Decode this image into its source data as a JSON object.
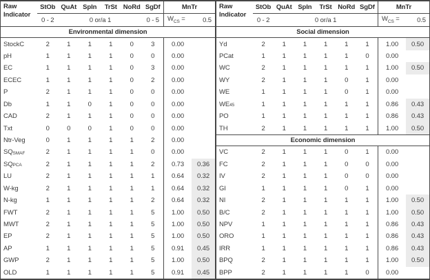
{
  "table": {
    "indicator_header": {
      "line1": "Raw",
      "line2": "Indicator"
    },
    "score_columns": [
      "StOb",
      "QuAt",
      "SpIn",
      "TrSt",
      "NoRd",
      "SgDf"
    ],
    "mntr_label": "MnTr",
    "wcs": {
      "base": "W",
      "sub": "CS",
      "eq": "=",
      "value": "0.5"
    },
    "colors": {
      "shade": "#ebebeb",
      "line": "#4a4a4a",
      "text": "#3c3c3c"
    },
    "panels": [
      {
        "ranges": [
          {
            "label": "0 - 2",
            "span": 1
          },
          {
            "label": "0 or/a 1",
            "span": 4
          },
          {
            "label": "0 - 5",
            "span": 1
          }
        ],
        "sections": [
          {
            "title": "Environmental dimension",
            "rows": [
              {
                "indicator": "StockC",
                "subscript": "",
                "scores": [
                  "2",
                  "1",
                  "1",
                  "1",
                  "0",
                  "3"
                ],
                "mntr": "0.00",
                "weight": ""
              },
              {
                "indicator": "pH",
                "subscript": "",
                "scores": [
                  "1",
                  "1",
                  "1",
                  "1",
                  "0",
                  "0"
                ],
                "mntr": "0.00",
                "weight": ""
              },
              {
                "indicator": "EC",
                "subscript": "",
                "scores": [
                  "1",
                  "1",
                  "1",
                  "1",
                  "0",
                  "3"
                ],
                "mntr": "0.00",
                "weight": ""
              },
              {
                "indicator": "ECEC",
                "subscript": "",
                "scores": [
                  "1",
                  "1",
                  "1",
                  "1",
                  "0",
                  "2"
                ],
                "mntr": "0.00",
                "weight": ""
              },
              {
                "indicator": "P",
                "subscript": "",
                "scores": [
                  "2",
                  "1",
                  "1",
                  "1",
                  "0",
                  "0"
                ],
                "mntr": "0.00",
                "weight": ""
              },
              {
                "indicator": "Db",
                "subscript": "",
                "scores": [
                  "1",
                  "1",
                  "0",
                  "1",
                  "0",
                  "0"
                ],
                "mntr": "0.00",
                "weight": ""
              },
              {
                "indicator": "CAD",
                "subscript": "",
                "scores": [
                  "2",
                  "1",
                  "1",
                  "1",
                  "0",
                  "0"
                ],
                "mntr": "0.00",
                "weight": ""
              },
              {
                "indicator": "Txt",
                "subscript": "",
                "scores": [
                  "0",
                  "0",
                  "0",
                  "1",
                  "0",
                  "0"
                ],
                "mntr": "0.00",
                "weight": ""
              },
              {
                "indicator": "Ntr-Veg",
                "subscript": "",
                "scores": [
                  "0",
                  "1",
                  "1",
                  "1",
                  "1",
                  "2"
                ],
                "mntr": "0.00",
                "weight": ""
              },
              {
                "indicator": "SQ",
                "subscript": "SMAF",
                "scores": [
                  "2",
                  "1",
                  "1",
                  "1",
                  "1",
                  "0"
                ],
                "mntr": "0.00",
                "weight": ""
              },
              {
                "indicator": "SQ",
                "subscript": "PCA",
                "scores": [
                  "2",
                  "1",
                  "1",
                  "1",
                  "1",
                  "2"
                ],
                "mntr": "0.73",
                "weight": "0.36"
              },
              {
                "indicator": "LU",
                "subscript": "",
                "scores": [
                  "2",
                  "1",
                  "1",
                  "1",
                  "1",
                  "1"
                ],
                "mntr": "0.64",
                "weight": "0.32"
              },
              {
                "indicator": "W-kg",
                "subscript": "",
                "scores": [
                  "2",
                  "1",
                  "1",
                  "1",
                  "1",
                  "1"
                ],
                "mntr": "0.64",
                "weight": "0.32"
              },
              {
                "indicator": "N-kg",
                "subscript": "",
                "scores": [
                  "1",
                  "1",
                  "1",
                  "1",
                  "1",
                  "2"
                ],
                "mntr": "0.64",
                "weight": "0.32"
              },
              {
                "indicator": "FWT",
                "subscript": "",
                "scores": [
                  "2",
                  "1",
                  "1",
                  "1",
                  "1",
                  "5"
                ],
                "mntr": "1.00",
                "weight": "0.50"
              },
              {
                "indicator": "MWT",
                "subscript": "",
                "scores": [
                  "2",
                  "1",
                  "1",
                  "1",
                  "1",
                  "5"
                ],
                "mntr": "1.00",
                "weight": "0.50"
              },
              {
                "indicator": "EP",
                "subscript": "",
                "scores": [
                  "2",
                  "1",
                  "1",
                  "1",
                  "1",
                  "5"
                ],
                "mntr": "1.00",
                "weight": "0.50"
              },
              {
                "indicator": "AP",
                "subscript": "",
                "scores": [
                  "1",
                  "1",
                  "1",
                  "1",
                  "1",
                  "5"
                ],
                "mntr": "0.91",
                "weight": "0.45"
              },
              {
                "indicator": "GWP",
                "subscript": "",
                "scores": [
                  "2",
                  "1",
                  "1",
                  "1",
                  "1",
                  "5"
                ],
                "mntr": "1.00",
                "weight": "0.50"
              },
              {
                "indicator": "OLD",
                "subscript": "",
                "scores": [
                  "1",
                  "1",
                  "1",
                  "1",
                  "1",
                  "5"
                ],
                "mntr": "0.91",
                "weight": "0.45"
              }
            ]
          }
        ]
      },
      {
        "ranges": [
          {
            "label": "0 - 2",
            "span": 1
          },
          {
            "label": "0 or/a 1",
            "span": 5
          }
        ],
        "sections": [
          {
            "title": "Social dimension",
            "rows": [
              {
                "indicator": "Yd",
                "subscript": "",
                "scores": [
                  "2",
                  "1",
                  "1",
                  "1",
                  "1",
                  "1"
                ],
                "mntr": "1.00",
                "weight": "0.50"
              },
              {
                "indicator": "PCat",
                "subscript": "",
                "scores": [
                  "1",
                  "1",
                  "1",
                  "1",
                  "1",
                  "0"
                ],
                "mntr": "0.00",
                "weight": ""
              },
              {
                "indicator": "WC",
                "subscript": "",
                "scores": [
                  "2",
                  "1",
                  "1",
                  "1",
                  "1",
                  "1"
                ],
                "mntr": "1.00",
                "weight": "0.50"
              },
              {
                "indicator": "WY",
                "subscript": "",
                "scores": [
                  "2",
                  "1",
                  "1",
                  "1",
                  "0",
                  "1"
                ],
                "mntr": "0.00",
                "weight": ""
              },
              {
                "indicator": "WE",
                "subscript": "",
                "scores": [
                  "1",
                  "1",
                  "1",
                  "1",
                  "0",
                  "1"
                ],
                "mntr": "0.00",
                "weight": ""
              },
              {
                "indicator": "WE",
                "subscript": "45",
                "scores": [
                  "1",
                  "1",
                  "1",
                  "1",
                  "1",
                  "1"
                ],
                "mntr": "0.86",
                "weight": "0.43"
              },
              {
                "indicator": "PO",
                "subscript": "",
                "scores": [
                  "1",
                  "1",
                  "1",
                  "1",
                  "1",
                  "1"
                ],
                "mntr": "0.86",
                "weight": "0.43"
              },
              {
                "indicator": "TH",
                "subscript": "",
                "scores": [
                  "2",
                  "1",
                  "1",
                  "1",
                  "1",
                  "1"
                ],
                "mntr": "1.00",
                "weight": "0.50"
              }
            ]
          },
          {
            "title": "Economic dimension",
            "rows": [
              {
                "indicator": "VC",
                "subscript": "",
                "scores": [
                  "2",
                  "1",
                  "1",
                  "1",
                  "0",
                  "1"
                ],
                "mntr": "0.00",
                "weight": ""
              },
              {
                "indicator": "FC",
                "subscript": "",
                "scores": [
                  "2",
                  "1",
                  "1",
                  "1",
                  "0",
                  "0"
                ],
                "mntr": "0.00",
                "weight": ""
              },
              {
                "indicator": "IV",
                "subscript": "",
                "scores": [
                  "2",
                  "1",
                  "1",
                  "1",
                  "0",
                  "0"
                ],
                "mntr": "0.00",
                "weight": ""
              },
              {
                "indicator": "GI",
                "subscript": "",
                "scores": [
                  "1",
                  "1",
                  "1",
                  "1",
                  "0",
                  "1"
                ],
                "mntr": "0.00",
                "weight": ""
              },
              {
                "indicator": "NI",
                "subscript": "",
                "scores": [
                  "2",
                  "1",
                  "1",
                  "1",
                  "1",
                  "1"
                ],
                "mntr": "1.00",
                "weight": "0.50"
              },
              {
                "indicator": "B/C",
                "subscript": "",
                "scores": [
                  "2",
                  "1",
                  "1",
                  "1",
                  "1",
                  "1"
                ],
                "mntr": "1.00",
                "weight": "0.50"
              },
              {
                "indicator": "NPV",
                "subscript": "",
                "scores": [
                  "1",
                  "1",
                  "1",
                  "1",
                  "1",
                  "1"
                ],
                "mntr": "0.86",
                "weight": "0.43"
              },
              {
                "indicator": "ORO",
                "subscript": "",
                "scores": [
                  "1",
                  "1",
                  "1",
                  "1",
                  "1",
                  "1"
                ],
                "mntr": "0.86",
                "weight": "0.43"
              },
              {
                "indicator": "IRR",
                "subscript": "",
                "scores": [
                  "1",
                  "1",
                  "1",
                  "1",
                  "1",
                  "1"
                ],
                "mntr": "0.86",
                "weight": "0.43"
              },
              {
                "indicator": "BPQ",
                "subscript": "",
                "scores": [
                  "2",
                  "1",
                  "1",
                  "1",
                  "1",
                  "1"
                ],
                "mntr": "1.00",
                "weight": "0.50"
              },
              {
                "indicator": "BPP",
                "subscript": "",
                "scores": [
                  "2",
                  "1",
                  "1",
                  "1",
                  "1",
                  "0"
                ],
                "mntr": "0.00",
                "weight": ""
              }
            ]
          }
        ]
      }
    ]
  }
}
